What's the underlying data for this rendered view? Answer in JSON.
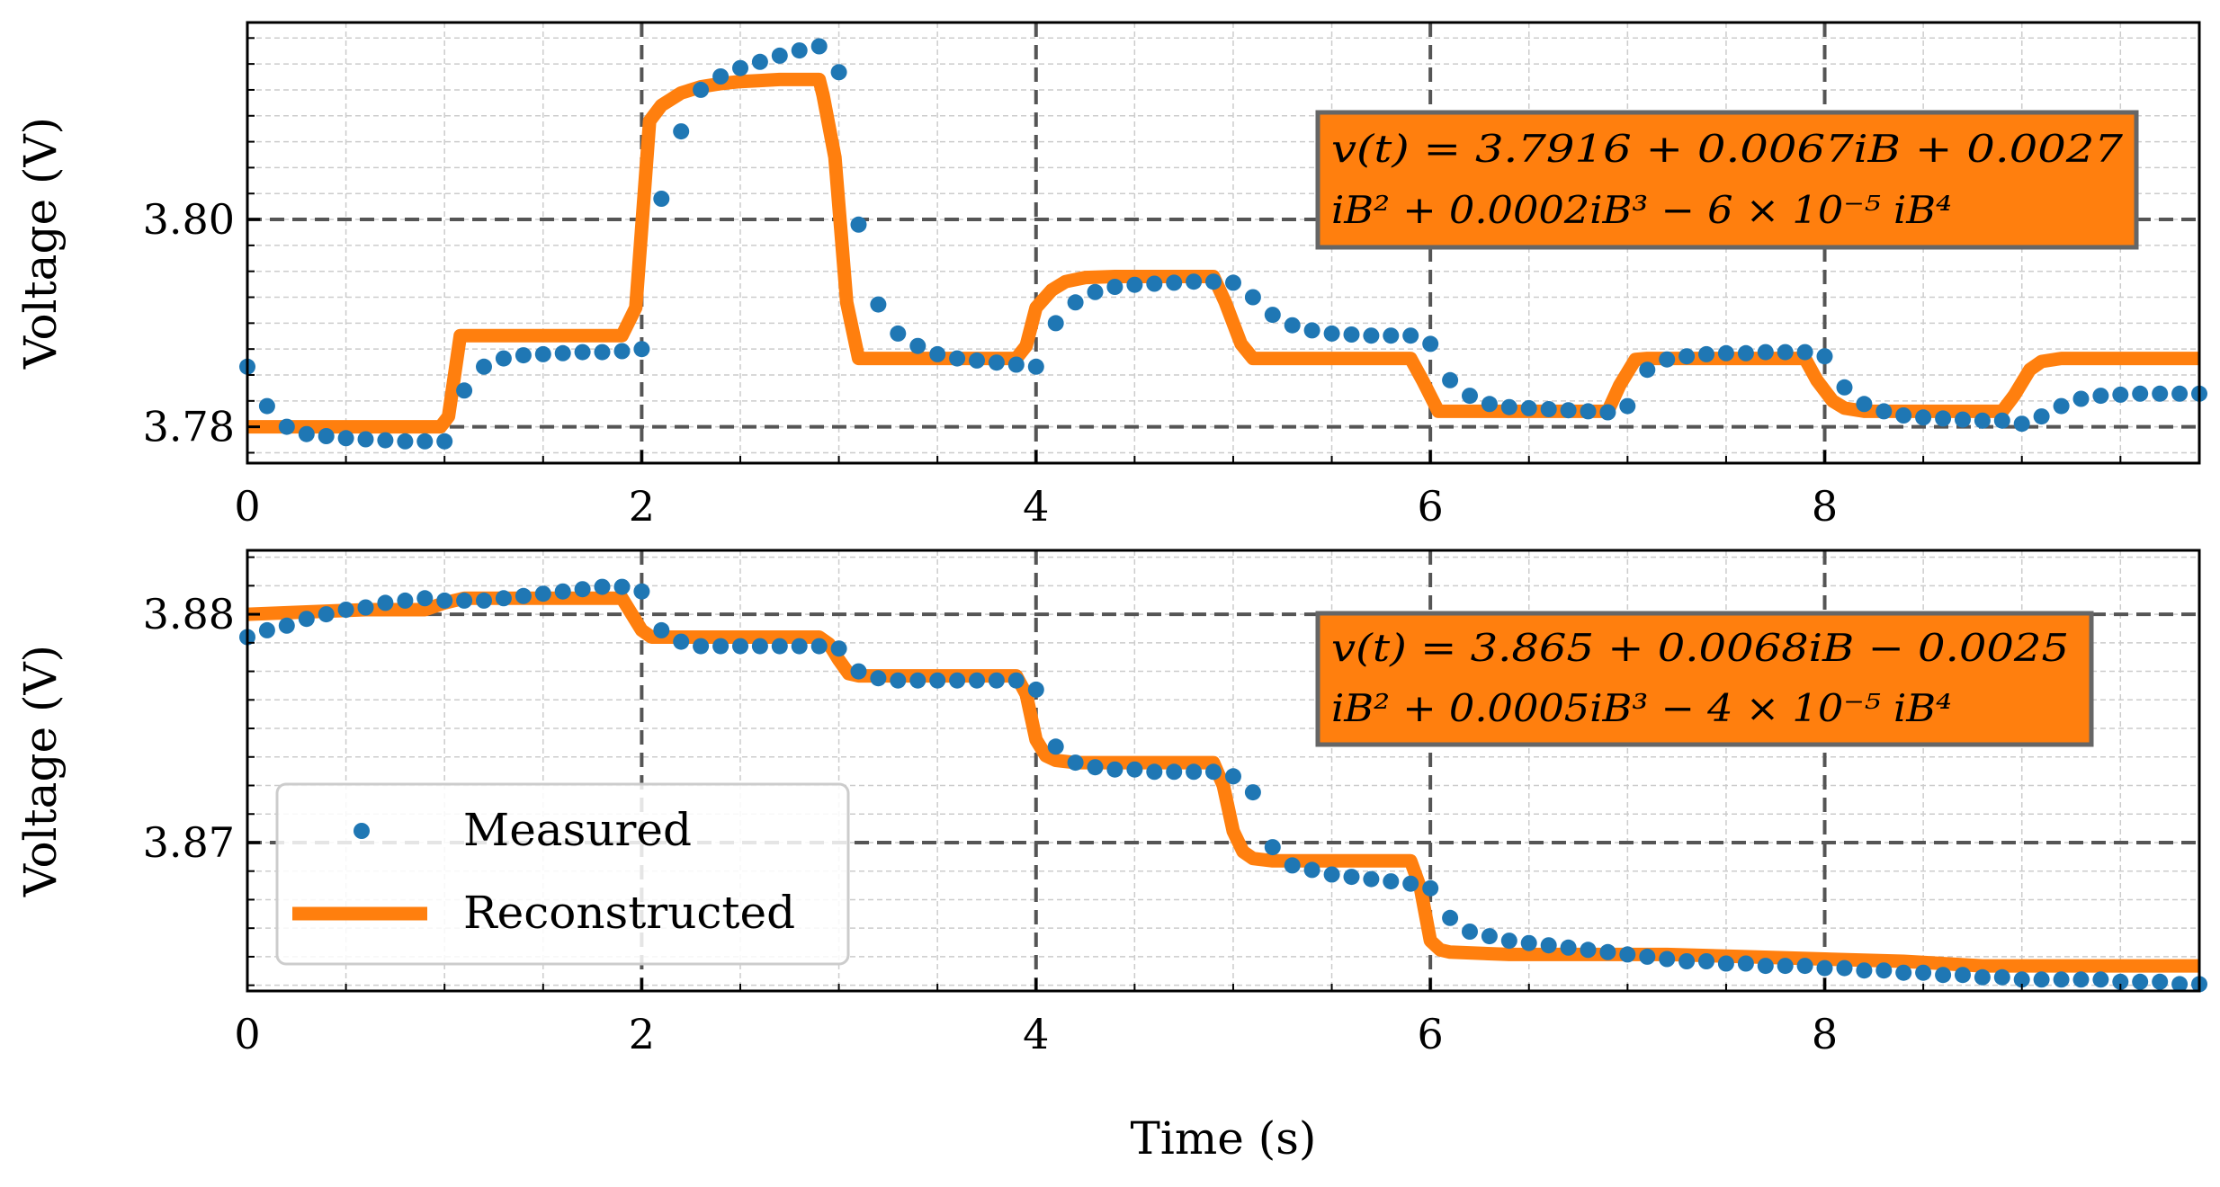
{
  "colors": {
    "measured": "#1f77b4",
    "reconstructed": "#ff7f0e",
    "major_grid": "#555555",
    "minor_grid": "#cccccc",
    "box_edge": "#666666"
  },
  "chart_data": [
    {
      "type": "line",
      "name": "top",
      "xlabel": "",
      "ylabel": "Voltage (V)",
      "xlim": [
        0,
        9.9
      ],
      "ylim": [
        3.7765,
        3.819
      ],
      "xticks": [
        0,
        2,
        4,
        6,
        8
      ],
      "xtick_labels": [
        "0",
        "2",
        "4",
        "6",
        "8"
      ],
      "yticks": [
        3.78,
        3.8
      ],
      "ytick_labels": [
        "3.78",
        "3.80"
      ],
      "equation": {
        "line1": "v(t) = 3.7916 + 0.0067iB + 0.0027",
        "line2": "iB² + 0.0002iB³ − 6 × 10⁻⁵ iB⁴"
      },
      "series": [
        {
          "name": "Measured",
          "style": "markers",
          "x": [
            0.0,
            0.1,
            0.2,
            0.3,
            0.4,
            0.5,
            0.6,
            0.7,
            0.8,
            0.9,
            1.0,
            1.1,
            1.2,
            1.3,
            1.4,
            1.5,
            1.6,
            1.7,
            1.8,
            1.9,
            2.0,
            2.1,
            2.2,
            2.3,
            2.4,
            2.5,
            2.6,
            2.7,
            2.8,
            2.9,
            3.0,
            3.1,
            3.2,
            3.3,
            3.4,
            3.5,
            3.6,
            3.7,
            3.8,
            3.9,
            4.0,
            4.1,
            4.2,
            4.3,
            4.4,
            4.5,
            4.6,
            4.7,
            4.8,
            4.9,
            5.0,
            5.1,
            5.2,
            5.3,
            5.4,
            5.5,
            5.6,
            5.7,
            5.8,
            5.9,
            6.0,
            6.1,
            6.2,
            6.3,
            6.4,
            6.5,
            6.6,
            6.7,
            6.8,
            6.9,
            7.0,
            7.1,
            7.2,
            7.3,
            7.4,
            7.5,
            7.6,
            7.7,
            7.8,
            7.9,
            8.0,
            8.1,
            8.2,
            8.3,
            8.4,
            8.5,
            8.6,
            8.7,
            8.8,
            8.9,
            9.0,
            9.1,
            9.2,
            9.3,
            9.4,
            9.5,
            9.6,
            9.7,
            9.8,
            9.9
          ],
          "y": [
            3.7858,
            3.782,
            3.78,
            3.7793,
            3.7791,
            3.7789,
            3.7788,
            3.7787,
            3.7786,
            3.7786,
            3.7786,
            3.7835,
            3.7858,
            3.7866,
            3.7869,
            3.787,
            3.7871,
            3.7872,
            3.7872,
            3.7873,
            3.7875,
            3.802,
            3.8085,
            3.8125,
            3.8138,
            3.8146,
            3.8152,
            3.8158,
            3.8163,
            3.8167,
            3.8142,
            3.7995,
            3.7918,
            3.789,
            3.7878,
            3.787,
            3.7866,
            3.7864,
            3.7862,
            3.786,
            3.7858,
            3.79,
            3.792,
            3.793,
            3.7935,
            3.7937,
            3.7938,
            3.7939,
            3.794,
            3.794,
            3.7939,
            3.7925,
            3.7908,
            3.7898,
            3.7893,
            3.789,
            3.7889,
            3.7888,
            3.7888,
            3.7888,
            3.788,
            3.7845,
            3.783,
            3.7822,
            3.7819,
            3.7818,
            3.7817,
            3.7816,
            3.7815,
            3.7814,
            3.782,
            3.7855,
            3.7865,
            3.7868,
            3.787,
            3.7871,
            3.7871,
            3.7872,
            3.7872,
            3.7872,
            3.7868,
            3.7838,
            3.7822,
            3.7815,
            3.7811,
            3.7809,
            3.7808,
            3.7807,
            3.7806,
            3.7806,
            3.7803,
            3.781,
            3.782,
            3.7827,
            3.783,
            3.7831,
            3.7832,
            3.7832,
            3.7832,
            3.7832
          ]
        },
        {
          "name": "Reconstructed",
          "style": "thick-line",
          "x": [
            0.0,
            0.98,
            1.02,
            1.08,
            1.9,
            1.97,
            2.04,
            2.1,
            2.2,
            2.3,
            2.4,
            2.5,
            2.6,
            2.7,
            2.8,
            2.9,
            2.92,
            2.98,
            3.04,
            3.1,
            3.9,
            3.95,
            4.0,
            4.08,
            4.15,
            4.25,
            4.4,
            4.6,
            4.8,
            4.9,
            4.96,
            5.04,
            5.1,
            5.9,
            5.96,
            6.04,
            6.1,
            6.9,
            6.96,
            7.04,
            7.1,
            7.9,
            7.96,
            8.04,
            8.1,
            8.2,
            8.4,
            8.6,
            8.8,
            8.9,
            8.96,
            9.04,
            9.1,
            9.2,
            9.5,
            9.9
          ],
          "y": [
            3.78,
            3.78,
            3.781,
            3.7888,
            3.7888,
            3.7915,
            3.8095,
            3.811,
            3.8122,
            3.8128,
            3.8131,
            3.8133,
            3.8134,
            3.8135,
            3.8135,
            3.8135,
            3.812,
            3.806,
            3.792,
            3.7866,
            3.7866,
            3.7878,
            3.7915,
            3.7932,
            3.794,
            3.7944,
            3.7945,
            3.7945,
            3.7945,
            3.7945,
            3.792,
            3.788,
            3.7866,
            3.7866,
            3.7845,
            3.7815,
            3.7815,
            3.7815,
            3.784,
            3.7865,
            3.7866,
            3.7866,
            3.7845,
            3.7825,
            3.7818,
            3.7815,
            3.7815,
            3.7815,
            3.7815,
            3.7815,
            3.783,
            3.7855,
            3.7863,
            3.7866,
            3.7866,
            3.7866
          ]
        }
      ]
    },
    {
      "type": "line",
      "name": "bottom",
      "xlabel": "Time (s)",
      "ylabel": "Voltage (V)",
      "xlim": [
        0,
        9.9
      ],
      "ylim": [
        3.8635,
        3.8828
      ],
      "xticks": [
        0,
        2,
        4,
        6,
        8
      ],
      "xtick_labels": [
        "0",
        "2",
        "4",
        "6",
        "8"
      ],
      "yticks": [
        3.87,
        3.88
      ],
      "ytick_labels": [
        "3.87",
        "3.88"
      ],
      "equation": {
        "line1": "v(t) = 3.865 + 0.0068iB − 0.0025",
        "line2": "iB² + 0.0005iB³ − 4 × 10⁻⁵ iB⁴"
      },
      "series": [
        {
          "name": "Measured",
          "style": "markers",
          "x": [
            0.0,
            0.1,
            0.2,
            0.3,
            0.4,
            0.5,
            0.6,
            0.7,
            0.8,
            0.9,
            1.0,
            1.1,
            1.2,
            1.3,
            1.4,
            1.5,
            1.6,
            1.7,
            1.8,
            1.9,
            2.0,
            2.1,
            2.2,
            2.3,
            2.4,
            2.5,
            2.6,
            2.7,
            2.8,
            2.9,
            3.0,
            3.1,
            3.2,
            3.3,
            3.4,
            3.5,
            3.6,
            3.7,
            3.8,
            3.9,
            4.0,
            4.1,
            4.2,
            4.3,
            4.4,
            4.5,
            4.6,
            4.7,
            4.8,
            4.9,
            5.0,
            5.1,
            5.2,
            5.3,
            5.4,
            5.5,
            5.6,
            5.7,
            5.8,
            5.9,
            6.0,
            6.1,
            6.2,
            6.3,
            6.4,
            6.5,
            6.6,
            6.7,
            6.8,
            6.9,
            7.0,
            7.1,
            7.2,
            7.3,
            7.4,
            7.5,
            7.6,
            7.7,
            7.8,
            7.9,
            8.0,
            8.1,
            8.2,
            8.3,
            8.4,
            8.5,
            8.6,
            8.7,
            8.8,
            8.9,
            9.0,
            9.1,
            9.2,
            9.3,
            9.4,
            9.5,
            9.6,
            9.7,
            9.8,
            9.9
          ],
          "y": [
            3.879,
            3.8793,
            3.8795,
            3.8798,
            3.88,
            3.8802,
            3.8803,
            3.8805,
            3.8806,
            3.8807,
            3.8806,
            3.8806,
            3.8806,
            3.8807,
            3.8808,
            3.8809,
            3.881,
            3.8811,
            3.8812,
            3.8812,
            3.881,
            3.8793,
            3.8788,
            3.8786,
            3.8786,
            3.8786,
            3.8786,
            3.8786,
            3.8786,
            3.8786,
            3.8785,
            3.8775,
            3.8772,
            3.8771,
            3.8771,
            3.8771,
            3.8771,
            3.8771,
            3.8771,
            3.8771,
            3.8767,
            3.8742,
            3.8735,
            3.8733,
            3.8732,
            3.8732,
            3.8731,
            3.8731,
            3.8731,
            3.8731,
            3.8729,
            3.8722,
            3.8698,
            3.869,
            3.8688,
            3.8686,
            3.8685,
            3.8684,
            3.8683,
            3.8682,
            3.868,
            3.8667,
            3.8661,
            3.8659,
            3.8657,
            3.8656,
            3.8655,
            3.8654,
            3.8653,
            3.8652,
            3.8651,
            3.865,
            3.8649,
            3.8648,
            3.8648,
            3.8647,
            3.8647,
            3.8646,
            3.8646,
            3.8646,
            3.8645,
            3.8645,
            3.8644,
            3.8644,
            3.8643,
            3.8643,
            3.8642,
            3.8642,
            3.8641,
            3.8641,
            3.864,
            3.864,
            3.864,
            3.864,
            3.864,
            3.8639,
            3.8639,
            3.8639,
            3.8638,
            3.8638
          ]
        },
        {
          "name": "Reconstructed",
          "style": "thick-line",
          "x": [
            0.0,
            0.3,
            0.6,
            0.9,
            1.0,
            1.1,
            1.5,
            1.9,
            1.95,
            2.0,
            2.05,
            2.1,
            2.9,
            2.95,
            3.0,
            3.05,
            3.1,
            3.9,
            3.95,
            4.0,
            4.05,
            4.1,
            4.2,
            4.4,
            4.6,
            4.9,
            4.95,
            5.0,
            5.05,
            5.1,
            5.2,
            5.4,
            5.6,
            5.9,
            5.95,
            6.0,
            6.05,
            6.1,
            6.4,
            6.8,
            7.2,
            7.6,
            8.0,
            8.4,
            8.8,
            9.2,
            9.6,
            9.9
          ],
          "y": [
            3.88,
            3.8801,
            3.8802,
            3.8802,
            3.8805,
            3.8807,
            3.8807,
            3.8807,
            3.88,
            3.8793,
            3.879,
            3.879,
            3.879,
            3.8787,
            3.878,
            3.8774,
            3.8773,
            3.8773,
            3.8765,
            3.8745,
            3.8738,
            3.8736,
            3.8735,
            3.8735,
            3.8735,
            3.8735,
            3.8725,
            3.8705,
            3.8696,
            3.8693,
            3.8692,
            3.8692,
            3.8692,
            3.8692,
            3.868,
            3.8657,
            3.8653,
            3.8652,
            3.8651,
            3.8651,
            3.8651,
            3.865,
            3.8649,
            3.8648,
            3.8646,
            3.8646,
            3.8646,
            3.8646
          ]
        }
      ]
    }
  ],
  "legend": {
    "position": "lower-left",
    "items": [
      {
        "label": "Measured",
        "marker": "dot"
      },
      {
        "label": "Reconstructed",
        "marker": "line"
      }
    ]
  }
}
